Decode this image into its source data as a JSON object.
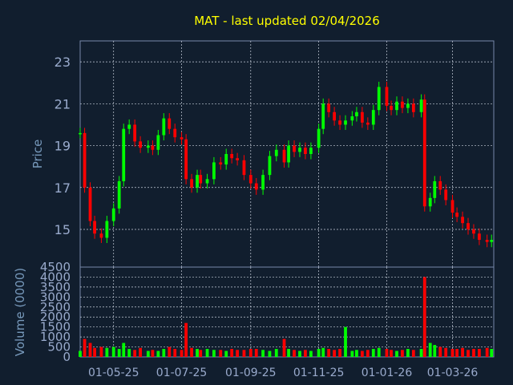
{
  "chart_data": [
    {
      "type": "candlestick",
      "title": "MAT - last updated 02/04/2026",
      "ylabel": "Price",
      "ylim": [
        13.2,
        24.0
      ],
      "yticks": [
        15,
        17,
        19,
        21,
        23
      ],
      "xlim": [
        "2025-04-01",
        "2026-04-07"
      ],
      "x_tick_labels": [
        "01-05-25",
        "01-07-25",
        "01-09-25",
        "01-11-25",
        "01-01-26",
        "01-03-26"
      ],
      "x_tick_dates": [
        "2025-05-01",
        "2025-07-01",
        "2025-09-01",
        "2025-11-01",
        "2026-01-01",
        "2026-03-01"
      ],
      "grid": true,
      "up_color": "#00ff00",
      "down_color": "#ff0000",
      "series": {
        "dates": [
          "2025-04-01",
          "2025-04-05",
          "2025-04-10",
          "2025-04-14",
          "2025-04-20",
          "2025-04-25",
          "2025-05-01",
          "2025-05-06",
          "2025-05-10",
          "2025-05-15",
          "2025-05-20",
          "2025-05-25",
          "2025-06-01",
          "2025-06-05",
          "2025-06-10",
          "2025-06-15",
          "2025-06-20",
          "2025-06-25",
          "2025-07-01",
          "2025-07-05",
          "2025-07-10",
          "2025-07-15",
          "2025-07-18",
          "2025-07-24",
          "2025-07-30",
          "2025-08-05",
          "2025-08-10",
          "2025-08-15",
          "2025-08-20",
          "2025-08-26",
          "2025-09-01",
          "2025-09-06",
          "2025-09-12",
          "2025-09-18",
          "2025-09-24",
          "2025-10-01",
          "2025-10-05",
          "2025-10-10",
          "2025-10-15",
          "2025-10-20",
          "2025-10-25",
          "2025-11-01",
          "2025-11-05",
          "2025-11-10",
          "2025-11-15",
          "2025-11-20",
          "2025-11-25",
          "2025-12-01",
          "2025-12-05",
          "2025-12-10",
          "2025-12-15",
          "2025-12-20",
          "2025-12-25",
          "2026-01-01",
          "2026-01-05",
          "2026-01-10",
          "2026-01-15",
          "2026-01-20",
          "2026-01-25",
          "2026-02-01",
          "2026-02-04",
          "2026-02-09",
          "2026-02-13",
          "2026-02-18",
          "2026-02-23",
          "2026-03-01",
          "2026-03-05",
          "2026-03-10",
          "2026-03-15",
          "2026-03-20",
          "2026-03-25",
          "2026-04-01",
          "2026-04-05"
        ],
        "close": [
          19.6,
          17.0,
          15.4,
          14.8,
          14.6,
          15.4,
          16.0,
          17.3,
          19.8,
          20.0,
          19.2,
          18.9,
          19.0,
          18.8,
          19.5,
          20.3,
          19.8,
          19.4,
          19.3,
          17.4,
          17.0,
          17.6,
          17.2,
          17.4,
          18.2,
          18.1,
          18.6,
          18.4,
          18.3,
          17.6,
          17.2,
          16.9,
          17.6,
          18.5,
          18.8,
          18.2,
          19.0,
          18.7,
          18.9,
          18.6,
          18.9,
          19.8,
          21.0,
          20.6,
          20.2,
          20.0,
          20.2,
          20.4,
          20.6,
          20.1,
          20.0,
          20.7,
          21.8,
          20.9,
          20.7,
          21.1,
          20.8,
          21.0,
          20.6,
          21.2,
          16.1,
          16.5,
          17.3,
          16.9,
          16.4,
          15.8,
          15.6,
          15.3,
          15.0,
          14.8,
          14.5,
          14.4,
          14.5
        ],
        "volume_0000": [
          300,
          900,
          700,
          450,
          500,
          450,
          500,
          400,
          700,
          400,
          350,
          450,
          300,
          350,
          300,
          400,
          500,
          400,
          350,
          1700,
          450,
          400,
          350,
          400,
          350,
          350,
          300,
          400,
          350,
          350,
          400,
          400,
          350,
          300,
          400,
          900,
          400,
          350,
          300,
          350,
          300,
          400,
          450,
          400,
          350,
          400,
          1500,
          300,
          350,
          300,
          350,
          400,
          450,
          400,
          350,
          300,
          350,
          400,
          350,
          400,
          4000,
          700,
          600,
          500,
          450,
          400,
          400,
          450,
          350,
          400,
          400,
          450,
          400
        ]
      }
    },
    {
      "type": "bar",
      "ylabel": "Volume (0000)",
      "ylim": [
        0,
        4500
      ],
      "yticks": [
        0,
        500,
        1000,
        1500,
        2000,
        2500,
        3000,
        3500,
        4000,
        4500
      ],
      "grid": true
    }
  ]
}
